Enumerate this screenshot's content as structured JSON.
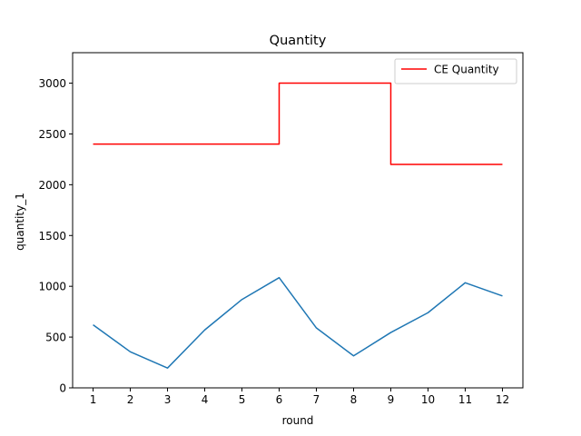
{
  "chart_data": {
    "type": "line",
    "title": "Quantity",
    "xlabel": "round",
    "ylabel": "quantity_1",
    "x": [
      1,
      2,
      3,
      4,
      5,
      6,
      7,
      8,
      9,
      10,
      11,
      12
    ],
    "xlim": [
      0.45,
      12.55
    ],
    "ylim": [
      0,
      3300
    ],
    "yticks": [
      0,
      500,
      1000,
      1500,
      2000,
      2500,
      3000
    ],
    "grid": false,
    "legend_position": "top-right",
    "series": [
      {
        "name": "",
        "style": "line",
        "color": "#1f77b4",
        "values": [
          620,
          355,
          195,
          570,
          870,
          1085,
          590,
          315,
          545,
          740,
          1035,
          905
        ]
      },
      {
        "name": "CE Quantity",
        "style": "step",
        "color": "#ff0000",
        "values": [
          2400,
          2400,
          2400,
          2400,
          2400,
          3000,
          3000,
          3000,
          2200,
          2200,
          2200,
          2200
        ]
      }
    ]
  }
}
